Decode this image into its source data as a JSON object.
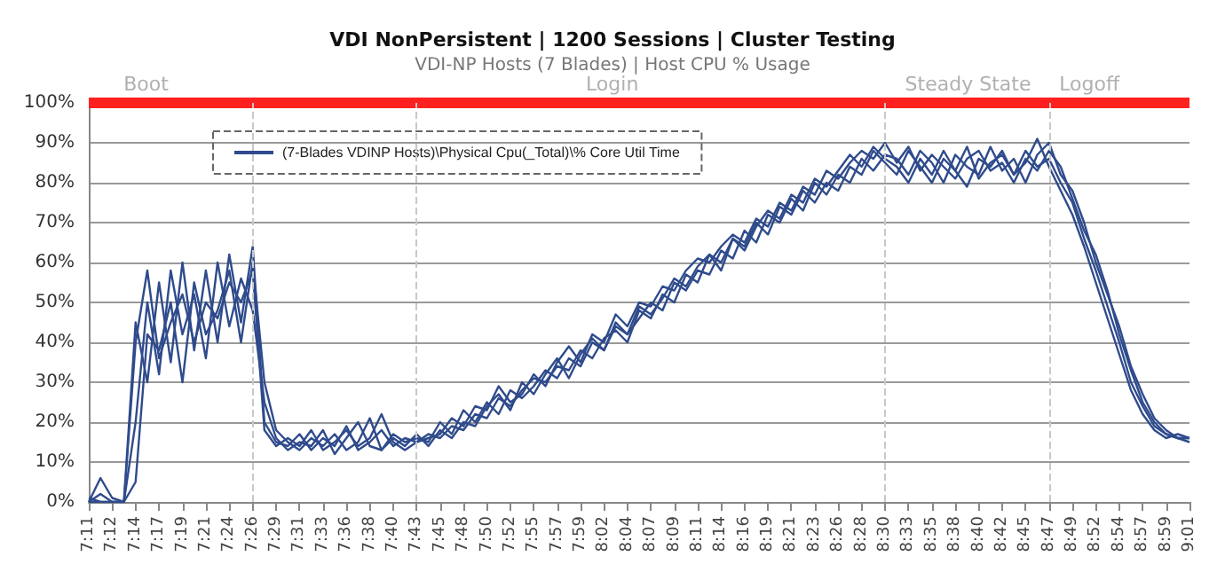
{
  "chart_data": {
    "type": "line",
    "title": "VDI NonPersistent | 1200 Sessions | Cluster Testing",
    "subtitle": "VDI-NP Hosts (7 Blades) | Host CPU % Usage",
    "categories": [
      "7:11",
      null,
      "7:12",
      null,
      "7:14",
      null,
      "7:17",
      null,
      "7:19",
      null,
      "7:21",
      null,
      "7:24",
      null,
      "7:26",
      null,
      "7:29",
      null,
      "7:31",
      null,
      "7:33",
      null,
      "7:36",
      null,
      "7:38",
      null,
      "7:40",
      null,
      "7:43",
      null,
      "7:45",
      null,
      "7:48",
      null,
      "7:50",
      null,
      "7:52",
      null,
      "7:55",
      null,
      "7:57",
      null,
      "7:59",
      null,
      "8:02",
      null,
      "8:04",
      null,
      "8:07",
      null,
      "8:09",
      null,
      "8:11",
      null,
      "8:14",
      null,
      "8:16",
      null,
      "8:19",
      null,
      "8:21",
      null,
      "8:23",
      null,
      "8:26",
      null,
      "8:28",
      null,
      "8:30",
      null,
      "8:33",
      null,
      "8:35",
      null,
      "8:38",
      null,
      "8:40",
      null,
      "8:42",
      null,
      "8:45",
      null,
      "8:47",
      null,
      "8:49",
      null,
      "8:52",
      null,
      "8:54",
      null,
      "8:57",
      null,
      "8:59",
      null,
      "9:01"
    ],
    "series": [
      {
        "name": "(7-Blades VDINP Hosts)\\Physical Cpu(_Total)\\% Core Util Time",
        "color": "#2f4b8c",
        "values": [
          0,
          6,
          1,
          0,
          45,
          30,
          55,
          35,
          60,
          38,
          58,
          40,
          62,
          45,
          64,
          20,
          15,
          14,
          17,
          13,
          16,
          14,
          19,
          13,
          15,
          18,
          14,
          16,
          15,
          17,
          16,
          19,
          18,
          22,
          21,
          26,
          24,
          28,
          31,
          30,
          34,
          33,
          38,
          36,
          41,
          43,
          40,
          48,
          46,
          52,
          50,
          57,
          55,
          62,
          60,
          66,
          64,
          70,
          67,
          74,
          72,
          78,
          75,
          80,
          78,
          84,
          82,
          88,
          85,
          82,
          88,
          84,
          80,
          86,
          83,
          89,
          81,
          85,
          87,
          82,
          88,
          84,
          86,
          80,
          75,
          66,
          58,
          49,
          40,
          30,
          24,
          19,
          17,
          16,
          16
        ]
      },
      {
        "color": "#2f4b8c",
        "values": [
          0,
          2,
          0,
          0,
          20,
          50,
          32,
          58,
          42,
          52,
          36,
          60,
          44,
          56,
          48,
          25,
          16,
          13,
          15,
          14,
          18,
          12,
          16,
          20,
          14,
          13,
          17,
          15,
          16,
          15,
          20,
          17,
          23,
          20,
          25,
          22,
          28,
          26,
          29,
          33,
          31,
          36,
          34,
          40,
          38,
          44,
          42,
          46,
          50,
          48,
          55,
          53,
          58,
          57,
          63,
          61,
          68,
          65,
          72,
          70,
          76,
          73,
          80,
          77,
          82,
          80,
          86,
          83,
          87,
          86,
          82,
          88,
          85,
          80,
          87,
          84,
          82,
          89,
          83,
          86,
          80,
          87,
          90,
          82,
          78,
          70,
          60,
          52,
          44,
          34,
          27,
          21,
          18,
          16,
          15
        ]
      },
      {
        "color": "#2f4b8c",
        "values": [
          1,
          0,
          0,
          0,
          5,
          42,
          38,
          50,
          30,
          55,
          42,
          48,
          58,
          40,
          60,
          30,
          18,
          15,
          13,
          16,
          14,
          17,
          13,
          15,
          21,
          13,
          16,
          14,
          17,
          14,
          18,
          16,
          20,
          19,
          24,
          27,
          23,
          30,
          27,
          32,
          36,
          31,
          37,
          41,
          38,
          45,
          42,
          49,
          47,
          51,
          56,
          54,
          59,
          62,
          58,
          66,
          63,
          69,
          73,
          71,
          77,
          75,
          81,
          79,
          83,
          87,
          84,
          89,
          86,
          84,
          80,
          86,
          82,
          88,
          83,
          79,
          86,
          84,
          88,
          82,
          85,
          91,
          84,
          78,
          72,
          64,
          55,
          46,
          37,
          28,
          22,
          18,
          16,
          17,
          16
        ]
      },
      {
        "color": "#2f4b8c",
        "values": [
          0,
          0,
          0,
          0,
          40,
          58,
          36,
          45,
          52,
          40,
          50,
          46,
          55,
          50,
          58,
          18,
          14,
          16,
          14,
          18,
          13,
          15,
          18,
          14,
          16,
          22,
          15,
          13,
          15,
          16,
          17,
          21,
          19,
          24,
          23,
          29,
          25,
          27,
          32,
          29,
          35,
          39,
          35,
          42,
          40,
          47,
          44,
          50,
          49,
          54,
          53,
          58,
          61,
          60,
          64,
          67,
          65,
          71,
          69,
          75,
          73,
          79,
          77,
          83,
          81,
          85,
          88,
          86,
          90,
          85,
          89,
          83,
          87,
          84,
          81,
          86,
          88,
          83,
          85,
          80,
          86,
          83,
          88,
          84,
          76,
          68,
          62,
          53,
          42,
          33,
          25,
          20,
          17,
          16,
          16
        ]
      }
    ],
    "ylim": [
      0,
      100
    ],
    "yticks": [
      {
        "value": 0,
        "label": "0%"
      },
      {
        "value": 10,
        "label": "10%"
      },
      {
        "value": 20,
        "label": "20%"
      },
      {
        "value": 30,
        "label": "30%"
      },
      {
        "value": 40,
        "label": "40%"
      },
      {
        "value": 50,
        "label": "50%"
      },
      {
        "value": 60,
        "label": "60%"
      },
      {
        "value": 70,
        "label": "70%"
      },
      {
        "value": 80,
        "label": "80%"
      },
      {
        "value": 90,
        "label": "90%"
      },
      {
        "value": 100,
        "label": "100%"
      }
    ],
    "ref_lines": [
      {
        "axis": "y",
        "value": 100,
        "color": "#ff2020",
        "line_style": "solid"
      },
      {
        "axis": "x",
        "value": "7:26",
        "color": "#c8c8c8",
        "line_style": "dashed"
      },
      {
        "axis": "x",
        "value": "7:43",
        "color": "#c8c8c8",
        "line_style": "dashed"
      },
      {
        "axis": "x",
        "value": "8:30",
        "color": "#c8c8c8",
        "line_style": "dashed"
      },
      {
        "axis": "x",
        "value": "8:47",
        "color": "#c8c8c8",
        "line_style": "dashed"
      }
    ],
    "annotations": [
      "Boot",
      "Login",
      "Steady State",
      "Logoff"
    ],
    "grid": "y",
    "legend": "top",
    "marker": "none",
    "line_style": "solid"
  }
}
